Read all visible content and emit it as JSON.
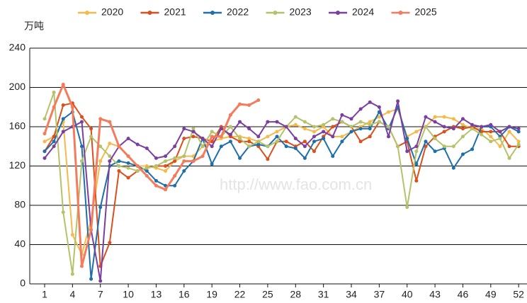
{
  "chart_data": {
    "type": "line",
    "y_label": "万吨",
    "watermark": "http://www.fao.com.cn",
    "x": [
      1,
      2,
      3,
      4,
      5,
      6,
      7,
      8,
      9,
      10,
      11,
      12,
      13,
      14,
      15,
      16,
      17,
      18,
      19,
      20,
      21,
      22,
      23,
      24,
      25,
      26,
      27,
      28,
      29,
      30,
      31,
      32,
      33,
      34,
      35,
      36,
      37,
      38,
      39,
      40,
      41,
      42,
      43,
      44,
      45,
      46,
      47,
      48,
      49,
      50,
      51,
      52
    ],
    "xlim": [
      -0.6,
      52.9
    ],
    "xticks": [
      1,
      4,
      7,
      10,
      13,
      16,
      19,
      22,
      25,
      28,
      31,
      34,
      37,
      40,
      43,
      46,
      49,
      52
    ],
    "ylim": [
      0,
      240
    ],
    "yticks": [
      0,
      40,
      80,
      120,
      160,
      200,
      240
    ],
    "grid": true,
    "legend": "top",
    "series": [
      {
        "name": "2020",
        "color": "#f6b94a",
        "values": [
          145,
          150,
          165,
          50,
          30,
          65,
          125,
          143,
          140,
          130,
          120,
          120,
          118,
          115,
          125,
          130,
          130,
          140,
          145,
          148,
          150,
          150,
          148,
          145,
          150,
          155,
          160,
          162,
          158,
          155,
          160,
          150,
          150,
          155,
          160,
          165,
          170,
          175,
          178,
          150,
          155,
          160,
          170,
          170,
          168,
          162,
          158,
          158,
          150,
          140,
          155,
          145
        ]
      },
      {
        "name": "2021",
        "color": "#d9501e",
        "values": [
          135,
          150,
          182,
          184,
          170,
          158,
          18,
          42,
          115,
          108,
          115,
          118,
          120,
          120,
          125,
          148,
          150,
          148,
          145,
          160,
          150,
          145,
          145,
          140,
          127,
          145,
          145,
          140,
          145,
          135,
          150,
          160,
          165,
          160,
          145,
          150,
          165,
          160,
          140,
          145,
          105,
          140,
          150,
          155,
          160,
          158,
          160,
          155,
          155,
          155,
          140,
          140
        ]
      },
      {
        "name": "2022",
        "color": "#1f6fa8",
        "values": [
          135,
          145,
          168,
          175,
          140,
          5,
          78,
          120,
          125,
          123,
          120,
          115,
          105,
          100,
          100,
          115,
          125,
          148,
          122,
          140,
          145,
          128,
          140,
          142,
          140,
          150,
          140,
          138,
          128,
          145,
          148,
          130,
          145,
          155,
          158,
          158,
          175,
          158,
          180,
          148,
          122,
          145,
          135,
          138,
          118,
          132,
          137,
          160,
          160,
          150,
          160,
          155
        ]
      },
      {
        "name": "2023",
        "color": "#b5c26a",
        "values": [
          168,
          195,
          73,
          10,
          125,
          150,
          140,
          130,
          120,
          118,
          115,
          118,
          120,
          125,
          128,
          130,
          158,
          140,
          155,
          150,
          160,
          148,
          140,
          145,
          140,
          145,
          160,
          170,
          165,
          160,
          162,
          168,
          165,
          160,
          165,
          162,
          165,
          160,
          140,
          78,
          135,
          160,
          148,
          140,
          140,
          150,
          158,
          152,
          145,
          148,
          128,
          142
        ]
      },
      {
        "name": "2024",
        "color": "#7b3fa0",
        "values": [
          128,
          140,
          155,
          160,
          165,
          55,
          3,
          125,
          140,
          148,
          142,
          138,
          128,
          130,
          140,
          158,
          155,
          148,
          140,
          158,
          152,
          165,
          158,
          150,
          165,
          165,
          160,
          148,
          140,
          150,
          155,
          150,
          172,
          168,
          178,
          185,
          180,
          150,
          186,
          135,
          140,
          170,
          165,
          160,
          158,
          168,
          162,
          160,
          162,
          155,
          160,
          158
        ]
      },
      {
        "name": "2025",
        "color": "#f47c5c",
        "values": [
          153,
          180,
          203,
          180,
          18,
          55,
          168,
          165,
          140,
          130,
          120,
          110,
          100,
          96,
          110,
          125,
          125,
          130,
          150,
          150,
          172,
          183,
          182,
          187,
          null,
          null,
          null,
          null,
          null,
          null,
          null,
          null,
          null,
          null,
          null,
          null,
          null,
          null,
          null,
          null,
          null,
          null,
          null,
          null,
          null,
          null,
          null,
          null,
          null,
          null,
          null,
          null
        ]
      }
    ]
  }
}
